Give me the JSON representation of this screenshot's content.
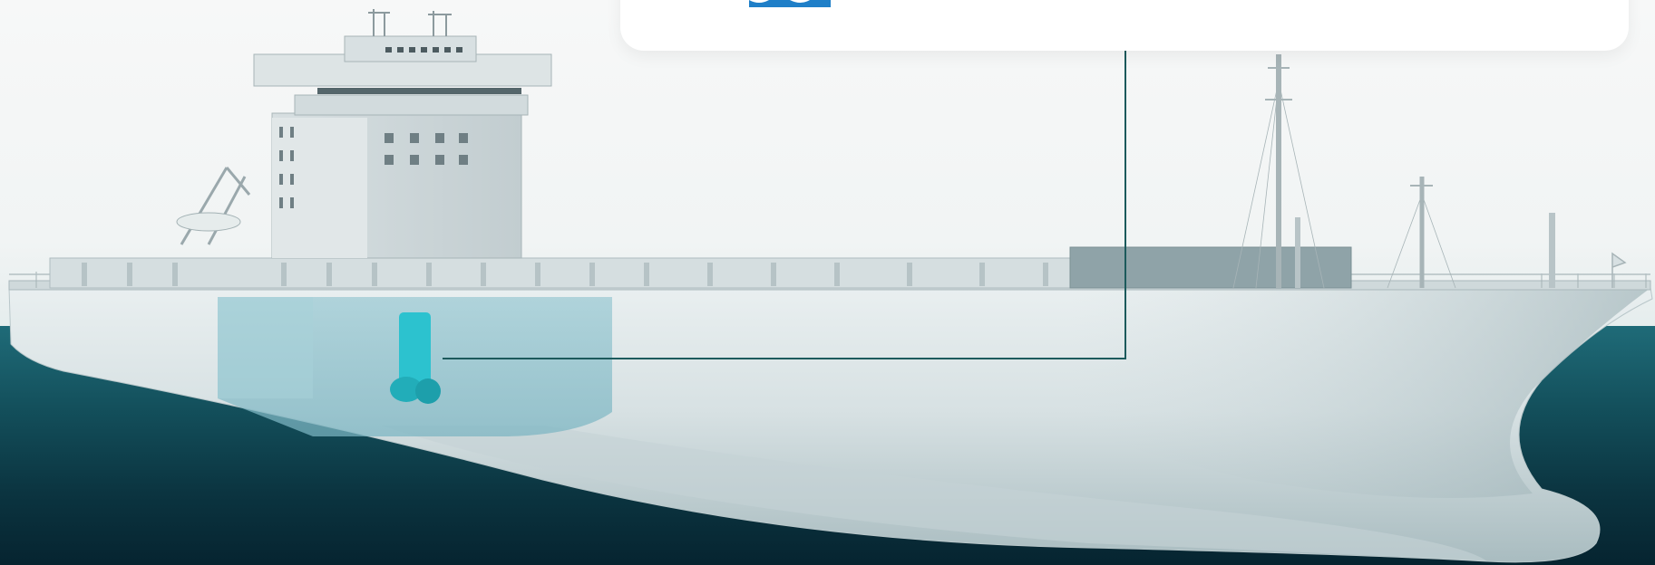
{
  "scene": {
    "icons": [
      "wave-icon"
    ],
    "colors": {
      "sky": "#f4f6f6",
      "sea_top": "#1f6b78",
      "sea_bottom": "#062430",
      "hull": "#dfe8ea",
      "highlight": "#3cc7d2",
      "callout_line": "#1c5a5c",
      "card": "#ffffff",
      "wave_icon": "#1f7fc8"
    }
  }
}
